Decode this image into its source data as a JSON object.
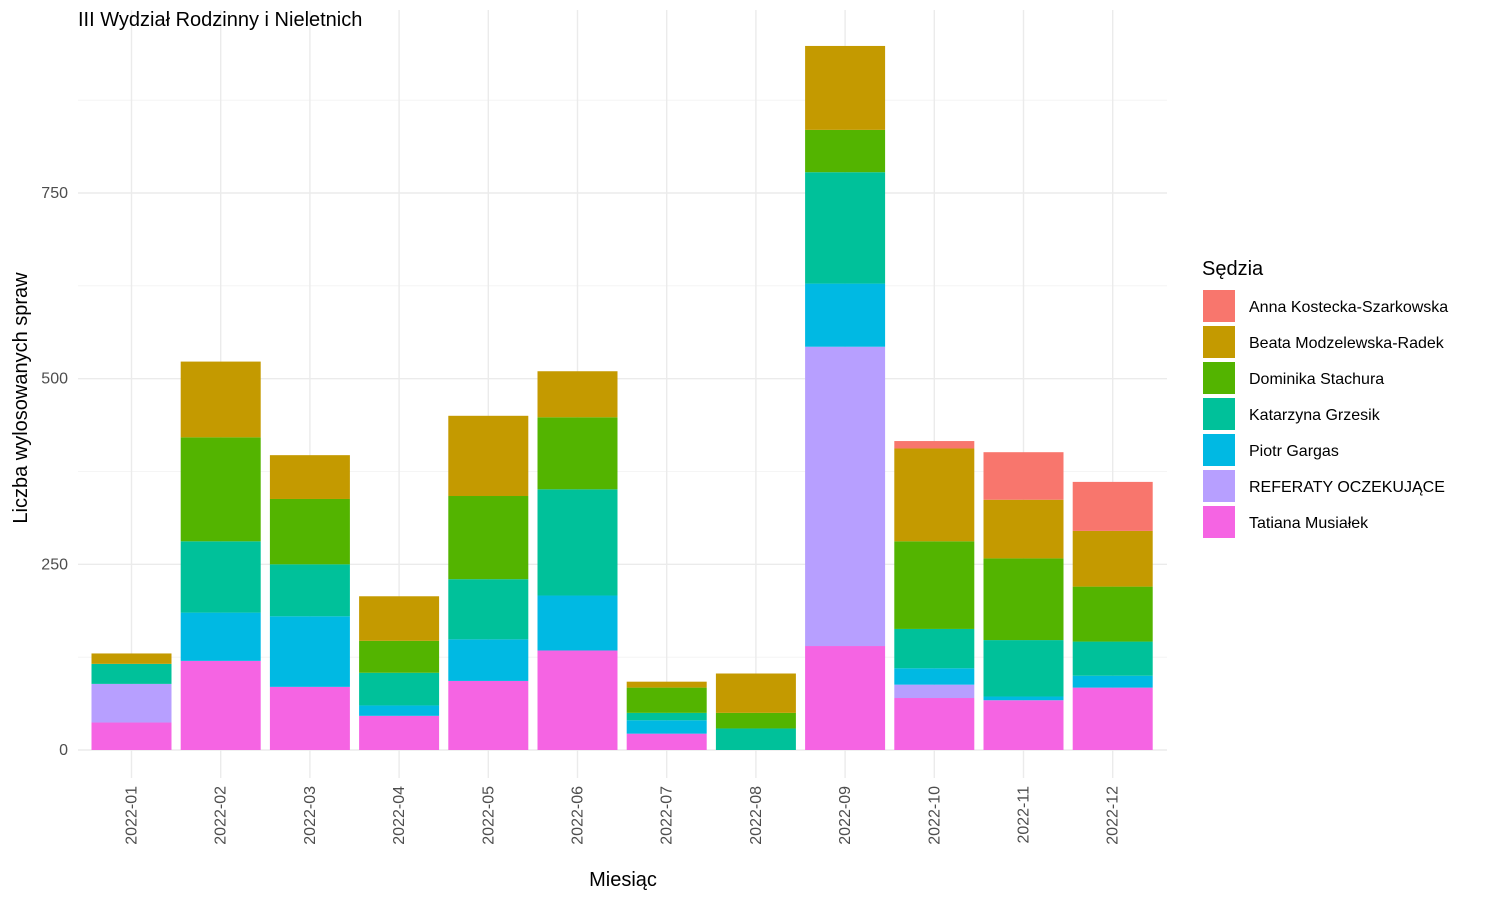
{
  "chart_data": {
    "type": "bar",
    "stacked": true,
    "title": "III Wydział Rodzinny i Nieletnich",
    "xlabel": "Miesiąc",
    "ylabel": "Liczba wylosowanych spraw",
    "ylim": [
      0,
      960
    ],
    "yticks": [
      0,
      250,
      500,
      750
    ],
    "grid": true,
    "legend_title": "Sędzia",
    "legend_position": "right",
    "categories": [
      "2022-01",
      "2022-02",
      "2022-03",
      "2022-04",
      "2022-05",
      "2022-06",
      "2022-07",
      "2022-08",
      "2022-09",
      "2022-10",
      "2022-11",
      "2022-12"
    ],
    "series": [
      {
        "name": "Tatiana Musiałek",
        "color": "#F564E3",
        "values": [
          37,
          120,
          85,
          46,
          93,
          134,
          22,
          0,
          140,
          70,
          67,
          84
        ]
      },
      {
        "name": "REFERATY OCZEKUJĄCE",
        "color": "#B79FFF",
        "values": [
          52,
          0,
          0,
          0,
          0,
          0,
          0,
          0,
          403,
          18,
          0,
          0
        ]
      },
      {
        "name": "Piotr Gargas",
        "color": "#00B9E3",
        "values": [
          0,
          65,
          95,
          14,
          56,
          74,
          18,
          0,
          85,
          22,
          5,
          16
        ]
      },
      {
        "name": "Katarzyna Grzesik",
        "color": "#00C19A",
        "values": [
          27,
          96,
          70,
          44,
          81,
          143,
          10,
          29,
          150,
          53,
          76,
          46
        ]
      },
      {
        "name": "Dominika Stachura",
        "color": "#53B400",
        "values": [
          0,
          140,
          88,
          43,
          112,
          97,
          34,
          21,
          57,
          118,
          110,
          74
        ]
      },
      {
        "name": "Beata Modzelewska-Radek",
        "color": "#C49A00",
        "values": [
          14,
          102,
          59,
          60,
          108,
          62,
          8,
          53,
          113,
          125,
          79,
          75
        ]
      },
      {
        "name": "Anna Kostecka-Szarkowska",
        "color": "#F8766D",
        "values": [
          0,
          0,
          0,
          0,
          0,
          0,
          0,
          0,
          0,
          10,
          64,
          66
        ]
      }
    ]
  }
}
